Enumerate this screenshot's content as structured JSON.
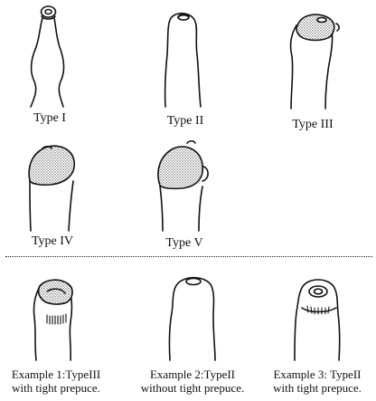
{
  "types": [
    {
      "id": "type-1",
      "label": "Type I"
    },
    {
      "id": "type-2",
      "label": "Type II"
    },
    {
      "id": "type-3",
      "label": "Type III"
    },
    {
      "id": "type-4",
      "label": "Type IV"
    },
    {
      "id": "type-5",
      "label": "Type V"
    }
  ],
  "examples": [
    {
      "id": "example-1",
      "line1": "Example 1:TypeIII",
      "line2": "with tight prepuce."
    },
    {
      "id": "example-2",
      "line1": "Example 2:TypeII",
      "line2": "without tight prepuce."
    },
    {
      "id": "example-3",
      "line1": "Example 3: TypeII",
      "line2": "with tight prepuce."
    }
  ],
  "colors": {
    "ink": "#111111",
    "background": "#ffffff",
    "stipple": "#555555"
  }
}
